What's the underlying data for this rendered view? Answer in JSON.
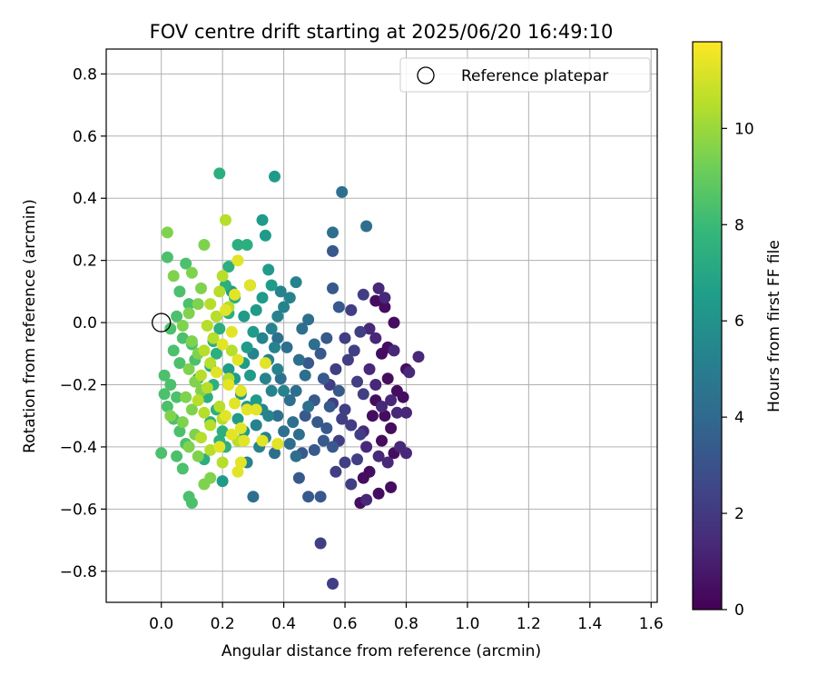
{
  "chart_data": {
    "type": "scatter",
    "title": "FOV centre drift starting at 2025/06/20 16:49:10",
    "xlabel": "Angular distance from reference (arcmin)",
    "ylabel": "Rotation from reference (arcmin)",
    "xlim": [
      -0.18,
      1.62
    ],
    "ylim": [
      -0.9,
      0.88
    ],
    "xticks": [
      0.0,
      0.2,
      0.4,
      0.6,
      0.8,
      1.0,
      1.2,
      1.4,
      1.6
    ],
    "xtick_labels": [
      "0.0",
      "0.2",
      "0.4",
      "0.6",
      "0.8",
      "1.0",
      "1.2",
      "1.4",
      "1.6"
    ],
    "yticks": [
      -0.8,
      -0.6,
      -0.4,
      -0.2,
      0.0,
      0.2,
      0.4,
      0.6,
      0.8
    ],
    "ytick_labels": [
      "−0.8",
      "−0.6",
      "−0.4",
      "−0.2",
      "0.0",
      "0.2",
      "0.4",
      "0.6",
      "0.8"
    ],
    "grid": true,
    "legend": {
      "placement": "top-right",
      "entries": [
        "Reference platepar"
      ]
    },
    "reference_point": {
      "x": 0.0,
      "y": 0.0
    },
    "colormap": "viridis",
    "colormap_stops": [
      "#440154",
      "#482878",
      "#3e4989",
      "#31688e",
      "#26828e",
      "#1f9e89",
      "#35b779",
      "#6ece58",
      "#b5de2b",
      "#fde725"
    ],
    "colorbar": {
      "label": "Hours from first FF file",
      "range": [
        0,
        11.8
      ],
      "ticks": [
        0,
        2,
        4,
        6,
        8,
        10
      ],
      "tick_labels": [
        "0",
        "2",
        "4",
        "6",
        "8",
        "10"
      ]
    },
    "series": [
      {
        "hours": 0.4,
        "points": [
          [
            0.7,
            0.07
          ],
          [
            0.73,
            0.05
          ],
          [
            0.76,
            0.0
          ],
          [
            0.72,
            -0.1
          ],
          [
            0.74,
            -0.18
          ],
          [
            0.77,
            -0.22
          ],
          [
            0.7,
            -0.25
          ],
          [
            0.73,
            -0.3
          ],
          [
            0.75,
            -0.34
          ],
          [
            0.72,
            -0.38
          ],
          [
            0.76,
            -0.42
          ],
          [
            0.68,
            -0.48
          ],
          [
            0.66,
            -0.5
          ],
          [
            0.71,
            -0.55
          ],
          [
            0.75,
            -0.53
          ],
          [
            0.65,
            -0.58
          ],
          [
            0.79,
            -0.24
          ],
          [
            0.8,
            -0.15
          ],
          [
            0.74,
            -0.08
          ],
          [
            0.69,
            -0.3
          ]
        ]
      },
      {
        "hours": 1.3,
        "points": [
          [
            0.71,
            0.11
          ],
          [
            0.73,
            0.08
          ],
          [
            0.7,
            -0.05
          ],
          [
            0.68,
            -0.15
          ],
          [
            0.7,
            -0.2
          ],
          [
            0.75,
            -0.25
          ],
          [
            0.77,
            -0.29
          ],
          [
            0.78,
            -0.4
          ],
          [
            0.74,
            -0.45
          ],
          [
            0.8,
            -0.42
          ],
          [
            0.67,
            -0.4
          ],
          [
            0.71,
            -0.43
          ],
          [
            0.66,
            -0.35
          ],
          [
            0.8,
            -0.29
          ],
          [
            0.81,
            -0.16
          ],
          [
            0.84,
            -0.11
          ],
          [
            0.76,
            -0.09
          ],
          [
            0.68,
            -0.02
          ],
          [
            0.67,
            -0.57
          ],
          [
            0.72,
            -0.27
          ]
        ]
      },
      {
        "hours": 2.2,
        "points": [
          [
            0.66,
            0.09
          ],
          [
            0.62,
            0.04
          ],
          [
            0.65,
            -0.03
          ],
          [
            0.63,
            -0.09
          ],
          [
            0.61,
            -0.12
          ],
          [
            0.64,
            -0.19
          ],
          [
            0.66,
            -0.23
          ],
          [
            0.6,
            -0.28
          ],
          [
            0.62,
            -0.33
          ],
          [
            0.65,
            -0.36
          ],
          [
            0.58,
            -0.38
          ],
          [
            0.6,
            -0.45
          ],
          [
            0.57,
            -0.48
          ],
          [
            0.64,
            -0.44
          ],
          [
            0.59,
            -0.31
          ],
          [
            0.55,
            -0.2
          ],
          [
            0.57,
            -0.15
          ],
          [
            0.52,
            -0.71
          ],
          [
            0.56,
            -0.84
          ],
          [
            0.62,
            -0.52
          ],
          [
            0.56,
            -0.26
          ],
          [
            0.6,
            -0.05
          ]
        ]
      },
      {
        "hours": 3.3,
        "points": [
          [
            0.58,
            0.05
          ],
          [
            0.56,
            0.11
          ],
          [
            0.54,
            -0.05
          ],
          [
            0.52,
            -0.1
          ],
          [
            0.53,
            -0.18
          ],
          [
            0.5,
            -0.25
          ],
          [
            0.55,
            -0.27
          ],
          [
            0.51,
            -0.32
          ],
          [
            0.53,
            -0.38
          ],
          [
            0.5,
            -0.41
          ],
          [
            0.46,
            -0.42
          ],
          [
            0.48,
            -0.56
          ],
          [
            0.52,
            -0.56
          ],
          [
            0.45,
            -0.5
          ],
          [
            0.56,
            -0.4
          ],
          [
            0.58,
            -0.22
          ],
          [
            0.48,
            -0.13
          ],
          [
            0.47,
            -0.3
          ],
          [
            0.54,
            -0.34
          ],
          [
            0.56,
            0.23
          ]
        ]
      },
      {
        "hours": 4.3,
        "points": [
          [
            0.59,
            0.42
          ],
          [
            0.56,
            0.29
          ],
          [
            0.67,
            0.31
          ],
          [
            0.48,
            0.01
          ],
          [
            0.46,
            -0.02
          ],
          [
            0.5,
            -0.07
          ],
          [
            0.45,
            -0.12
          ],
          [
            0.47,
            -0.17
          ],
          [
            0.44,
            -0.22
          ],
          [
            0.48,
            -0.27
          ],
          [
            0.43,
            -0.32
          ],
          [
            0.45,
            -0.36
          ],
          [
            0.42,
            -0.39
          ],
          [
            0.4,
            -0.35
          ],
          [
            0.42,
            -0.25
          ],
          [
            0.39,
            -0.18
          ],
          [
            0.41,
            -0.08
          ],
          [
            0.38,
            -0.05
          ],
          [
            0.37,
            -0.42
          ],
          [
            0.3,
            -0.56
          ],
          [
            0.44,
            -0.43
          ],
          [
            0.38,
            -0.3
          ]
        ]
      },
      {
        "hours": 5.3,
        "points": [
          [
            0.44,
            0.13
          ],
          [
            0.42,
            0.08
          ],
          [
            0.4,
            0.05
          ],
          [
            0.38,
            0.02
          ],
          [
            0.36,
            -0.02
          ],
          [
            0.37,
            -0.08
          ],
          [
            0.35,
            -0.12
          ],
          [
            0.34,
            -0.18
          ],
          [
            0.36,
            -0.22
          ],
          [
            0.33,
            -0.28
          ],
          [
            0.31,
            -0.33
          ],
          [
            0.34,
            -0.37
          ],
          [
            0.32,
            -0.4
          ],
          [
            0.28,
            -0.45
          ],
          [
            0.35,
            -0.3
          ],
          [
            0.38,
            -0.15
          ],
          [
            0.4,
            -0.22
          ],
          [
            0.39,
            0.1
          ],
          [
            0.33,
            -0.05
          ],
          [
            0.3,
            -0.1
          ]
        ]
      },
      {
        "hours": 6.4,
        "points": [
          [
            0.37,
            0.47
          ],
          [
            0.33,
            0.33
          ],
          [
            0.34,
            0.28
          ],
          [
            0.35,
            0.17
          ],
          [
            0.36,
            0.12
          ],
          [
            0.33,
            0.08
          ],
          [
            0.31,
            0.04
          ],
          [
            0.3,
            -0.03
          ],
          [
            0.28,
            -0.08
          ],
          [
            0.27,
            -0.13
          ],
          [
            0.29,
            -0.17
          ],
          [
            0.26,
            -0.23
          ],
          [
            0.28,
            -0.27
          ],
          [
            0.25,
            -0.31
          ],
          [
            0.27,
            -0.35
          ],
          [
            0.31,
            -0.25
          ],
          [
            0.24,
            -0.18
          ],
          [
            0.22,
            -0.15
          ],
          [
            0.2,
            -0.51
          ],
          [
            0.29,
            0.12
          ],
          [
            0.27,
            0.02
          ],
          [
            0.23,
            0.1
          ]
        ]
      },
      {
        "hours": 7.4,
        "points": [
          [
            0.19,
            0.48
          ],
          [
            0.25,
            0.25
          ],
          [
            0.28,
            0.25
          ],
          [
            0.22,
            0.18
          ],
          [
            0.21,
            0.12
          ],
          [
            0.24,
            0.08
          ],
          [
            0.22,
            0.03
          ],
          [
            0.19,
            -0.02
          ],
          [
            0.17,
            -0.06
          ],
          [
            0.18,
            -0.1
          ],
          [
            0.16,
            -0.14
          ],
          [
            0.17,
            -0.2
          ],
          [
            0.15,
            -0.24
          ],
          [
            0.18,
            -0.28
          ],
          [
            0.16,
            -0.32
          ],
          [
            0.19,
            -0.38
          ],
          [
            0.21,
            -0.4
          ],
          [
            0.14,
            -0.44
          ],
          [
            0.2,
            -0.35
          ],
          [
            0.12,
            -0.18
          ]
        ]
      },
      {
        "hours": 8.4,
        "points": [
          [
            0.02,
            0.21
          ],
          [
            0.08,
            0.19
          ],
          [
            0.06,
            0.1
          ],
          [
            0.09,
            0.06
          ],
          [
            0.05,
            0.02
          ],
          [
            0.03,
            -0.02
          ],
          [
            0.07,
            -0.05
          ],
          [
            0.04,
            -0.09
          ],
          [
            0.06,
            -0.13
          ],
          [
            0.01,
            -0.17
          ],
          [
            0.03,
            -0.2
          ],
          [
            0.05,
            -0.24
          ],
          [
            0.02,
            -0.27
          ],
          [
            0.04,
            -0.31
          ],
          [
            0.06,
            -0.35
          ],
          [
            0.08,
            -0.39
          ],
          [
            0.05,
            -0.43
          ],
          [
            0.07,
            -0.47
          ],
          [
            0.0,
            -0.42
          ],
          [
            0.09,
            -0.56
          ],
          [
            0.1,
            -0.58
          ],
          [
            0.01,
            -0.23
          ],
          [
            0.11,
            -0.12
          ],
          [
            0.1,
            -0.07
          ]
        ]
      },
      {
        "hours": 9.5,
        "points": [
          [
            0.02,
            0.29
          ],
          [
            0.04,
            0.15
          ],
          [
            0.1,
            0.16
          ],
          [
            0.13,
            0.11
          ],
          [
            0.12,
            0.06
          ],
          [
            0.09,
            0.03
          ],
          [
            0.07,
            -0.01
          ],
          [
            0.1,
            -0.06
          ],
          [
            0.12,
            -0.1
          ],
          [
            0.09,
            -0.15
          ],
          [
            0.11,
            -0.19
          ],
          [
            0.08,
            -0.24
          ],
          [
            0.1,
            -0.28
          ],
          [
            0.07,
            -0.32
          ],
          [
            0.11,
            -0.36
          ],
          [
            0.09,
            -0.4
          ],
          [
            0.12,
            -0.43
          ],
          [
            0.14,
            -0.52
          ],
          [
            0.16,
            -0.5
          ],
          [
            0.03,
            -0.3
          ],
          [
            0.13,
            -0.22
          ],
          [
            0.14,
            0.25
          ]
        ]
      },
      {
        "hours": 10.5,
        "points": [
          [
            0.21,
            0.33
          ],
          [
            0.2,
            0.15
          ],
          [
            0.19,
            0.1
          ],
          [
            0.16,
            0.06
          ],
          [
            0.18,
            0.02
          ],
          [
            0.15,
            -0.01
          ],
          [
            0.17,
            -0.05
          ],
          [
            0.14,
            -0.09
          ],
          [
            0.16,
            -0.13
          ],
          [
            0.13,
            -0.17
          ],
          [
            0.15,
            -0.21
          ],
          [
            0.12,
            -0.25
          ],
          [
            0.14,
            -0.29
          ],
          [
            0.16,
            -0.33
          ],
          [
            0.13,
            -0.37
          ],
          [
            0.2,
            -0.31
          ],
          [
            0.19,
            -0.27
          ],
          [
            0.22,
            -0.18
          ],
          [
            0.25,
            -0.38
          ],
          [
            0.2,
            -0.45
          ],
          [
            0.16,
            -0.41
          ],
          [
            0.22,
            0.05
          ],
          [
            0.23,
            -0.09
          ]
        ]
      },
      {
        "hours": 11.3,
        "points": [
          [
            0.25,
            0.2
          ],
          [
            0.29,
            0.12
          ],
          [
            0.24,
            0.09
          ],
          [
            0.21,
            0.04
          ],
          [
            0.23,
            -0.03
          ],
          [
            0.2,
            -0.07
          ],
          [
            0.25,
            -0.12
          ],
          [
            0.18,
            -0.16
          ],
          [
            0.22,
            -0.2
          ],
          [
            0.26,
            -0.22
          ],
          [
            0.24,
            -0.26
          ],
          [
            0.28,
            -0.28
          ],
          [
            0.21,
            -0.3
          ],
          [
            0.26,
            -0.34
          ],
          [
            0.23,
            -0.36
          ],
          [
            0.27,
            -0.38
          ],
          [
            0.19,
            -0.4
          ],
          [
            0.26,
            -0.45
          ],
          [
            0.25,
            -0.48
          ],
          [
            0.33,
            -0.38
          ],
          [
            0.34,
            -0.13
          ],
          [
            0.38,
            -0.39
          ],
          [
            0.31,
            -0.28
          ]
        ]
      }
    ]
  }
}
